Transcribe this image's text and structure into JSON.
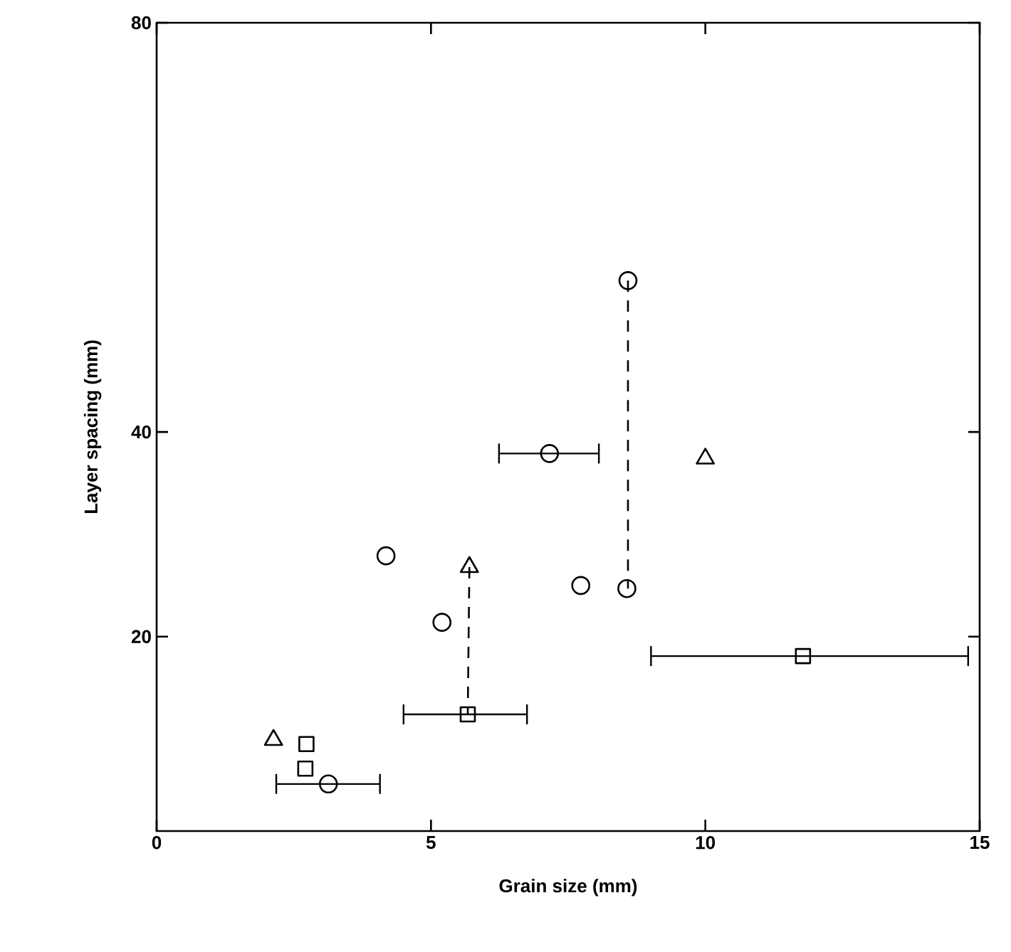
{
  "chart_data": {
    "type": "scatter",
    "xlabel": "Grain size (mm)",
    "ylabel": "Layer spacing (mm)",
    "xlim": [
      0,
      15
    ],
    "xticks": [
      0,
      5,
      10,
      15
    ],
    "ylim": [
      1,
      80
    ],
    "yticks": [
      20,
      40,
      80
    ],
    "grid": false,
    "series": [
      {
        "type": "line",
        "line_style": "dashed",
        "marker": "none",
        "color": "#000000",
        "x": [
          8.59,
          8.59
        ],
        "values": [
          54.8,
          24.7
        ]
      },
      {
        "type": "line",
        "line_style": "dashed",
        "marker": "none",
        "color": "#000000",
        "x": [
          5.7,
          5.67
        ],
        "values": [
          26.8,
          12.4
        ]
      },
      {
        "type": "scatter",
        "marker": "triangle",
        "color": "#000000",
        "x": [
          2.13,
          5.7,
          10.0
        ],
        "values": [
          9.9,
          26.8,
          37.4
        ]
      },
      {
        "type": "scatter",
        "marker": "square",
        "color": "#000000",
        "x": [
          2.73,
          2.71,
          5.67,
          11.78
        ],
        "values": [
          9.5,
          7.1,
          12.4,
          18.1
        ],
        "xerrors": [
          null,
          null,
          [
            4.5,
            6.75
          ],
          [
            9.01,
            14.79
          ]
        ]
      },
      {
        "type": "scatter",
        "marker": "circle",
        "color": "#000000",
        "x": [
          8.59,
          7.16
        ],
        "values": [
          54.8,
          37.9
        ],
        "xerrors": [
          null,
          [
            6.24,
            8.06
          ]
        ]
      },
      {
        "type": "scatter",
        "marker": "circle",
        "color": "#000000",
        "x": [
          4.18,
          7.73,
          8.57,
          5.2,
          3.13
        ],
        "values": [
          27.9,
          25.0,
          24.7,
          21.4,
          5.6
        ],
        "xerrors": [
          null,
          null,
          null,
          null,
          [
            2.18,
            4.07
          ]
        ]
      }
    ]
  }
}
